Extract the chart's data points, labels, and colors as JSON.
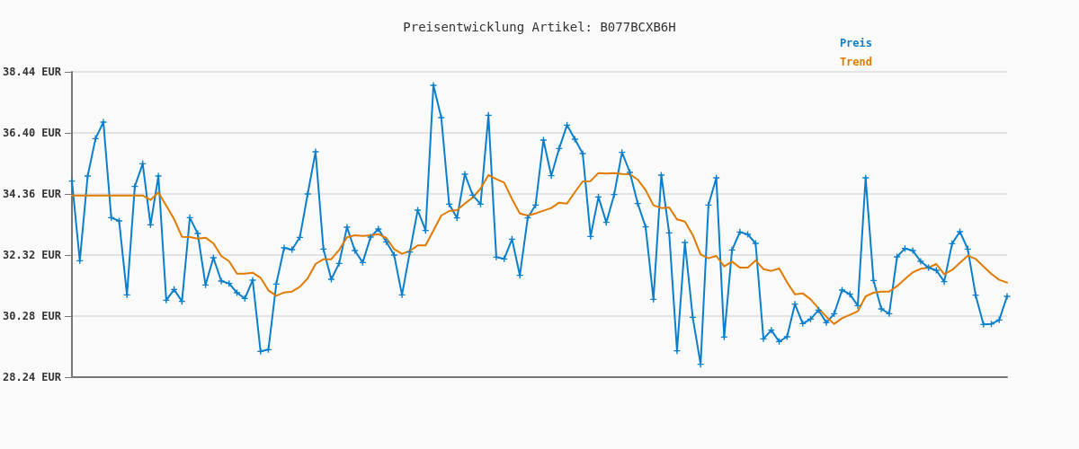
{
  "chart_data": {
    "type": "line",
    "title": "Preisentwicklung Artikel: B077BCXB6H",
    "categories": [
      null,
      null,
      null,
      null,
      null,
      null,
      null,
      null,
      null,
      null,
      null,
      null,
      null,
      null,
      null,
      null,
      null,
      null,
      null,
      null,
      null,
      null,
      null,
      null,
      null,
      null,
      null,
      null,
      null,
      null,
      null,
      null,
      null,
      null,
      null,
      null,
      null,
      null,
      null,
      null,
      null,
      null,
      null,
      null,
      null,
      null,
      null,
      null,
      null,
      null,
      null,
      null,
      null,
      null,
      null,
      null,
      null,
      null,
      null,
      null,
      null,
      null,
      null,
      null,
      null,
      null,
      null,
      null,
      null,
      null,
      null,
      null,
      null,
      null,
      null,
      null,
      null,
      null,
      null,
      null,
      null,
      null,
      null,
      null,
      null,
      null,
      null,
      null,
      null,
      null,
      null,
      null,
      null,
      null,
      null,
      null,
      null,
      null,
      null,
      null,
      null,
      null,
      null,
      null,
      null,
      null,
      null,
      null,
      null,
      null,
      null,
      null,
      null,
      null,
      null,
      null,
      null,
      null,
      null,
      null
    ],
    "series": [
      {
        "name": "Preis",
        "color": "#0b7fcc",
        "marker": "cross",
        "values": [
          34.79,
          32.13,
          34.96,
          36.21,
          36.76,
          33.57,
          33.46,
          30.99,
          34.61,
          35.37,
          33.33,
          34.96,
          30.81,
          31.17,
          30.77,
          33.57,
          33.04,
          31.32,
          32.23,
          31.45,
          31.37,
          31.06,
          30.87,
          31.48,
          29.1,
          29.16,
          31.35,
          32.56,
          32.5,
          32.91,
          34.36,
          35.77,
          32.52,
          31.51,
          32.04,
          33.25,
          32.47,
          32.07,
          32.92,
          33.19,
          32.76,
          32.32,
          30.99,
          32.42,
          33.82,
          33.14,
          37.99,
          36.91,
          34.02,
          33.56,
          35.02,
          34.32,
          34.02,
          36.99,
          32.25,
          32.19,
          32.85,
          31.64,
          33.56,
          33.99,
          36.16,
          34.97,
          35.88,
          36.66,
          36.19,
          35.71,
          32.94,
          34.26,
          33.41,
          34.34,
          35.75,
          35.08,
          34.04,
          33.26,
          30.84,
          34.99,
          33.06,
          29.12,
          32.74,
          30.24,
          28.67,
          33.99,
          34.9,
          29.58,
          32.49,
          33.09,
          33.01,
          32.71,
          29.52,
          29.81,
          29.43,
          29.59,
          30.68,
          30.03,
          30.18,
          30.48,
          30.06,
          30.36,
          31.15,
          31.01,
          30.63,
          34.9,
          31.47,
          30.52,
          30.36,
          32.26,
          32.54,
          32.47,
          32.11,
          31.9,
          31.81,
          31.43,
          32.7,
          33.1,
          32.52,
          30.98,
          30,
          30.02,
          30.15,
          30.94
        ]
      },
      {
        "name": "Trend",
        "color": "#e07b00",
        "values": [
          34.31,
          34.31,
          34.31,
          34.31,
          34.31,
          34.31,
          34.31,
          34.31,
          34.31,
          34.31,
          34.16,
          34.41,
          33.97,
          33.52,
          32.93,
          32.92,
          32.87,
          32.9,
          32.71,
          32.29,
          32.11,
          31.7,
          31.7,
          31.73,
          31.56,
          31.14,
          30.96,
          31.07,
          31.1,
          31.26,
          31.54,
          32.02,
          32.18,
          32.18,
          32.49,
          32.91,
          32.98,
          32.96,
          32.98,
          33.02,
          32.89,
          32.52,
          32.36,
          32.46,
          32.64,
          32.64,
          33.14,
          33.64,
          33.79,
          33.82,
          34.04,
          34.24,
          34.54,
          34.99,
          34.86,
          34.74,
          34.19,
          33.71,
          33.64,
          33.71,
          33.8,
          33.89,
          34.07,
          34.04,
          34.42,
          34.78,
          34.79,
          35.06,
          35.04,
          35.06,
          35.03,
          35.02,
          34.84,
          34.49,
          33.98,
          33.89,
          33.91,
          33.51,
          33.44,
          32.99,
          32.34,
          32.21,
          32.29,
          31.94,
          32.1,
          31.9,
          31.9,
          32.14,
          31.85,
          31.79,
          31.87,
          31.41,
          31.01,
          31.04,
          30.84,
          30.54,
          30.26,
          30.02,
          30.21,
          30.32,
          30.44,
          30.94,
          31.06,
          31.1,
          31.1,
          31.28,
          31.52,
          31.74,
          31.86,
          31.9,
          32.02,
          31.68,
          31.82,
          32.06,
          32.3,
          32.19,
          31.94,
          31.69,
          31.49,
          31.4
        ]
      }
    ],
    "ylim": [
      28.24,
      38.44
    ],
    "yticks": [
      {
        "value": 28.24,
        "label": "28.24 EUR"
      },
      {
        "value": 30.28,
        "label": "30.28 EUR"
      },
      {
        "value": 32.32,
        "label": "32.32 EUR"
      },
      {
        "value": 34.36,
        "label": "34.36 EUR"
      },
      {
        "value": 36.4,
        "label": "36.40 EUR"
      },
      {
        "value": 38.44,
        "label": "38.44 EUR"
      }
    ],
    "tick_labels": "y",
    "grid": "y",
    "legend": "top right",
    "line_style": "solid"
  }
}
